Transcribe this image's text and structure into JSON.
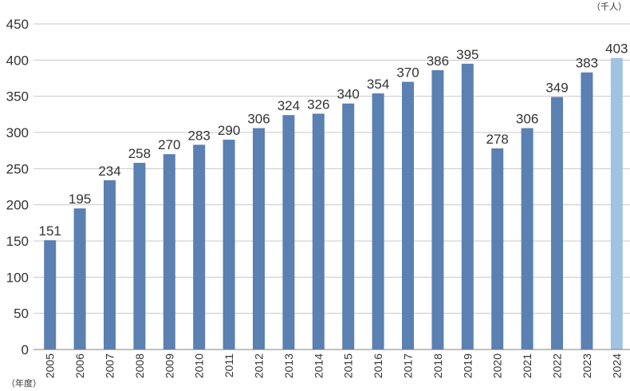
{
  "chart_data": {
    "type": "bar",
    "title": "",
    "categories": [
      "2005",
      "2006",
      "2007",
      "2008",
      "2009",
      "2010",
      "2011",
      "2012",
      "2013",
      "2014",
      "2015",
      "2016",
      "2017",
      "2018",
      "2019",
      "2020",
      "2021",
      "2022",
      "2023",
      "2024"
    ],
    "values": [
      151,
      195,
      234,
      258,
      270,
      283,
      290,
      306,
      324,
      326,
      340,
      354,
      370,
      386,
      395,
      278,
      306,
      349,
      383,
      403
    ],
    "value_labels": [
      "151",
      "195",
      "234",
      "258",
      "270",
      "283",
      "290",
      "306",
      "324",
      "326",
      "340",
      "354",
      "370",
      "386",
      "395",
      "278",
      "306",
      "349",
      "383",
      "403"
    ],
    "y_ticks": [
      "0",
      "50",
      "100",
      "150",
      "200",
      "250",
      "300",
      "350",
      "400",
      "450"
    ],
    "ylim": [
      0,
      450
    ],
    "y_unit_label": "（千人）",
    "x_unit_label": "（年度）",
    "grid": true,
    "colors": {
      "bar": "#5b80b2",
      "highlight": "#9fc3e2",
      "grid": "#c8c8c8",
      "axis": "#808080"
    },
    "highlight_index": 19
  }
}
